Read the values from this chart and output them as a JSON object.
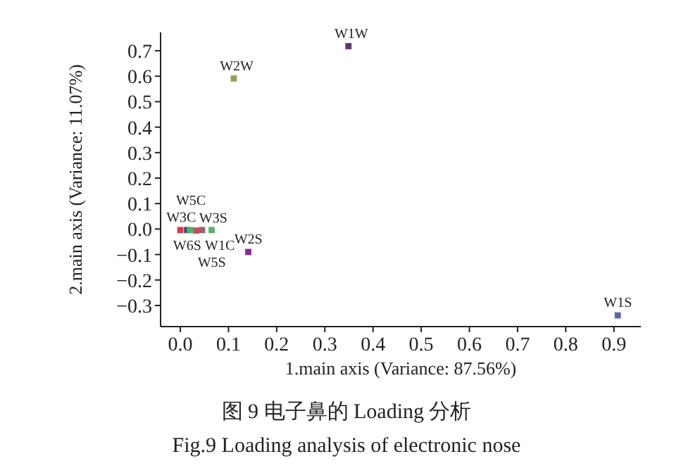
{
  "chart_data": {
    "type": "scatter",
    "xlabel": "1.main axis (Variance: 87.56%)",
    "ylabel": "2.main axis (Variance: 11.07%)",
    "xlim": [
      -0.041,
      0.956
    ],
    "ylim": [
      -0.383,
      0.772
    ],
    "xticks": [
      {
        "value": 0,
        "label": "0.0"
      },
      {
        "value": 0.1,
        "label": "0.1"
      },
      {
        "value": 0.2,
        "label": "0.2"
      },
      {
        "value": 0.3,
        "label": "0.3"
      },
      {
        "value": 0.4,
        "label": "0.4"
      },
      {
        "value": 0.5,
        "label": "0.5"
      },
      {
        "value": 0.6,
        "label": "0.6"
      },
      {
        "value": 0.7,
        "label": "0.7"
      },
      {
        "value": 0.8,
        "label": "0.8"
      },
      {
        "value": 0.9,
        "label": "0.9"
      }
    ],
    "yticks": [
      {
        "value": -0.3,
        "label": "−0.3"
      },
      {
        "value": -0.2,
        "label": "−0.2"
      },
      {
        "value": -0.1,
        "label": "−0.1"
      },
      {
        "value": 0,
        "label": "0.0"
      },
      {
        "value": 0.1,
        "label": "0.1"
      },
      {
        "value": 0.2,
        "label": "0.2"
      },
      {
        "value": 0.3,
        "label": "0.3"
      },
      {
        "value": 0.4,
        "label": "0.4"
      },
      {
        "value": 0.5,
        "label": "0.5"
      },
      {
        "value": 0.6,
        "label": "0.6"
      },
      {
        "value": 0.7,
        "label": "0.7"
      }
    ],
    "marker": "square",
    "grid": false,
    "series": [
      {
        "x": [
          0.349,
          0.111,
          0.141,
          0.908,
          0.0,
          0.014,
          0.02,
          0.033,
          0.045,
          0.065
        ],
        "values": [
          0.718,
          0.591,
          -0.09,
          -0.339,
          -0.004,
          -0.004,
          -0.004,
          -0.006,
          -0.004,
          -0.004
        ],
        "colors": [
          "#5a3a6a",
          "#9aa050",
          "#8a2a9a",
          "#5a6ab0",
          "#d04050",
          "#404868",
          "#50b060",
          "#c05060",
          "#a06070",
          "#60b070"
        ]
      }
    ],
    "annotations": [
      {
        "text": "W1W",
        "x": 0.349,
        "y": 0.718
      },
      {
        "text": "W2W",
        "x": 0.111,
        "y": 0.591
      },
      {
        "text": "W2S",
        "x": 0.141,
        "y": -0.09
      },
      {
        "text": "W1S",
        "x": 0.908,
        "y": -0.339
      },
      {
        "text": "W3C",
        "x": 0.0,
        "y": -0.004
      },
      {
        "text": "W6S",
        "x": 0.014,
        "y": -0.004
      },
      {
        "text": "W5C",
        "x": 0.02,
        "y": -0.004
      },
      {
        "text": "W3S",
        "x": 0.033,
        "y": -0.006
      },
      {
        "text": "W1C",
        "x": 0.045,
        "y": -0.004
      },
      {
        "text": "W5S",
        "x": 0.065,
        "y": -0.004
      },
      "图 9 电子鼻的 Loading 分析",
      "Fig.9 Loading analysis of electronic nose"
    ]
  }
}
